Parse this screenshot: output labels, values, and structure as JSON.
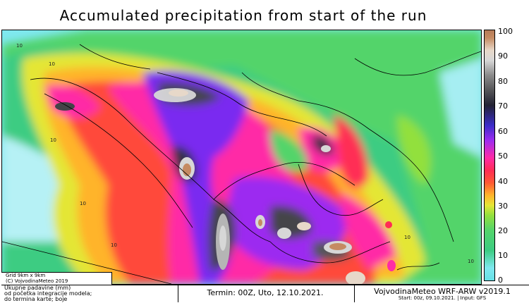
{
  "title": "Accumulated precipitation from start of the run",
  "colorbar": {
    "ticks": [
      "100",
      "90",
      "80",
      "70",
      "60",
      "50",
      "40",
      "30",
      "20",
      "10",
      "0"
    ]
  },
  "map_labels": {
    "contours": [
      "10",
      "10",
      "10",
      "10",
      "10",
      "10",
      "10"
    ]
  },
  "grid_info": {
    "line1": "Grid 9km x 9km",
    "line2": "(C) VojvodinaMeteo 2019"
  },
  "footer": {
    "left_line1": "Ukupne padavine (mm)",
    "left_line2": "od početka integracije modela;",
    "left_line3": "do termina karte; boje",
    "termin": "Termin: 00Z, Uto, 12.10.2021.",
    "right_line1": "VojvodinaMeteo WRF-ARW v2019.1",
    "right_line2": "Start: 00z, 09.10.2021. | Input: GFS"
  }
}
